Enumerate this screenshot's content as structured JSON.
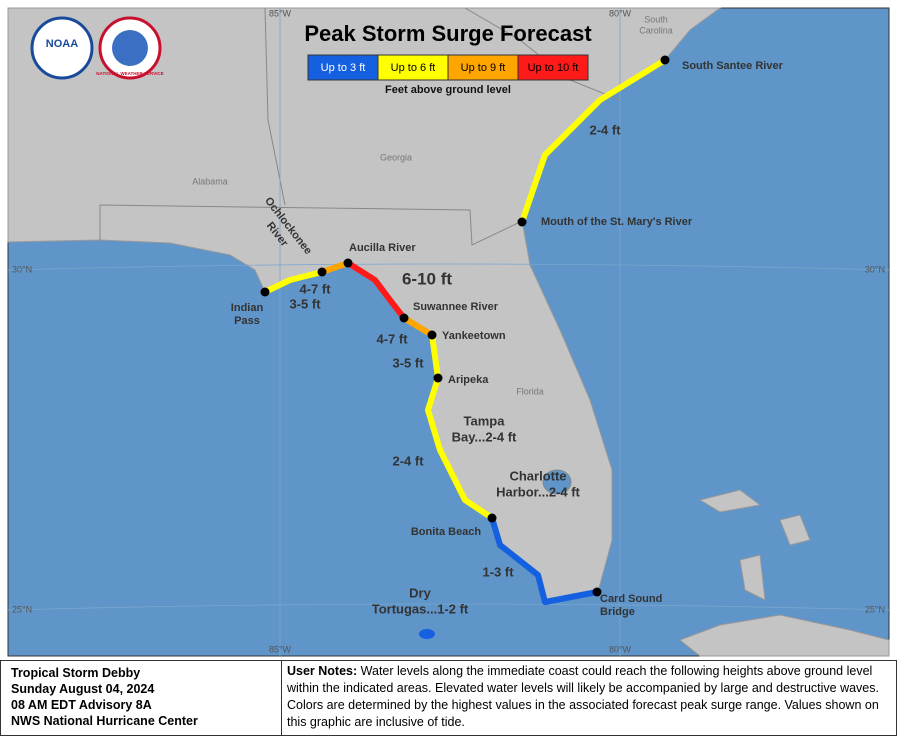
{
  "header": {
    "title": "Peak Storm Surge Forecast",
    "subtitle": "Feet above ground level",
    "logos": [
      "NOAA",
      "NATIONAL WEATHER SERVICE"
    ]
  },
  "legend": [
    {
      "label": "Up to 3 ft",
      "color": "#1560e0"
    },
    {
      "label": "Up to 6 ft",
      "color": "#ffff00"
    },
    {
      "label": "Up to 9 ft",
      "color": "#ffa500"
    },
    {
      "label": "Up to 10 ft",
      "color": "#ff1a1a"
    }
  ],
  "map_labels": {
    "graticule": [
      {
        "lines": [
          "85°W"
        ]
      },
      {
        "lines": [
          "80°W"
        ]
      },
      {
        "lines": [
          "30°N"
        ]
      },
      {
        "lines": [
          "30°N"
        ]
      },
      {
        "lines": [
          "25°N"
        ]
      },
      {
        "lines": [
          "25°N"
        ]
      },
      {
        "lines": [
          "85°W"
        ]
      },
      {
        "lines": [
          "80°W"
        ]
      }
    ],
    "states": [
      {
        "lines": [
          "South",
          "Carolina"
        ]
      },
      {
        "lines": [
          "Georgia"
        ]
      },
      {
        "lines": [
          "Alabama"
        ]
      },
      {
        "lines": [
          "Florida"
        ]
      }
    ],
    "locations": [
      {
        "lines": [
          "South Santee River"
        ]
      },
      {
        "lines": [
          "Mouth of the St. Mary's River"
        ]
      },
      {
        "lines": [
          "Aucilla River"
        ]
      },
      {
        "lines": [
          "Ochlockonee",
          "River"
        ]
      },
      {
        "lines": [
          "Indian",
          "Pass"
        ]
      },
      {
        "lines": [
          "Suwannee River"
        ]
      },
      {
        "lines": [
          "Yankeetown"
        ]
      },
      {
        "lines": [
          "Aripeka"
        ]
      },
      {
        "lines": [
          "Bonita Beach"
        ]
      },
      {
        "lines": [
          "Card Sound",
          "Bridge"
        ]
      }
    ],
    "surge": [
      {
        "lines": [
          "2-4 ft"
        ]
      },
      {
        "lines": [
          "6-10 ft"
        ]
      },
      {
        "lines": [
          "4-7 ft"
        ]
      },
      {
        "lines": [
          "3-5 ft"
        ]
      },
      {
        "lines": [
          "4-7 ft"
        ]
      },
      {
        "lines": [
          "3-5 ft"
        ]
      },
      {
        "lines": [
          "Tampa",
          "Bay...2-4 ft"
        ]
      },
      {
        "lines": [
          "2-4 ft"
        ]
      },
      {
        "lines": [
          "Charlotte",
          "Harbor...2-4 ft"
        ]
      },
      {
        "lines": [
          "1-3 ft"
        ]
      },
      {
        "lines": [
          "Dry",
          "Tortugas...1-2 ft"
        ]
      }
    ]
  },
  "footer": {
    "info": [
      "Tropical Storm Debby",
      "Sunday August 04, 2024",
      "08 AM EDT Advisory 8A",
      "NWS National Hurricane Center"
    ],
    "notes_label": "User Notes:",
    "notes": "Water levels along the immediate coast could reach the following heights above ground level within the indicated areas. Elevated water levels will likely be accompanied by large and destructive waves. Colors are determined by the highest values in the associated forecast peak surge range. Values shown on this graphic are inclusive of tide."
  }
}
